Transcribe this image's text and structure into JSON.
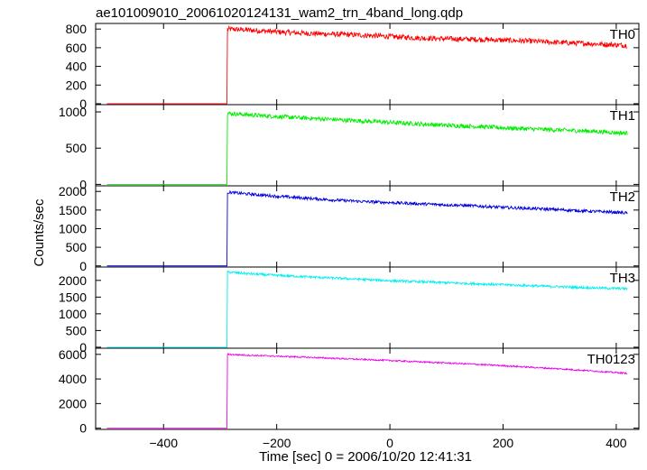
{
  "chart_data": {
    "type": "line",
    "title": "ae101009010_20061020124131_wam2_trn_4band_long.qdp",
    "xlabel": "Time [sec] 0 = 2006/10/20 12:41:31",
    "ylabel": "Counts/sec",
    "xlim": [
      -520,
      440
    ],
    "x_ticks": [
      -400,
      -200,
      0,
      200,
      400
    ],
    "x_tick_labels": [
      "−400",
      "−200",
      "0",
      "200",
      "400"
    ],
    "onset_x": -287,
    "data_x_range": [
      -500,
      420
    ],
    "grid": false,
    "panels": [
      {
        "name": "TH0",
        "color": "#ff0000",
        "ylim": [
          -10,
          860
        ],
        "y_ticks": [
          0,
          200,
          400,
          600,
          800
        ],
        "baseline": 0,
        "points_x": [
          -287,
          -250,
          -200,
          -150,
          -100,
          -50,
          0,
          50,
          100,
          150,
          200,
          250,
          300,
          350,
          400,
          420
        ],
        "points_y": [
          800,
          790,
          770,
          755,
          745,
          735,
          720,
          705,
          695,
          690,
          680,
          670,
          655,
          645,
          630,
          625
        ],
        "noise": 28
      },
      {
        "name": "TH1",
        "color": "#00ee00",
        "ylim": [
          -20,
          1100
        ],
        "y_ticks": [
          0,
          500,
          1000
        ],
        "baseline": 0,
        "points_x": [
          -287,
          -250,
          -200,
          -150,
          -100,
          -50,
          0,
          50,
          100,
          150,
          200,
          250,
          300,
          350,
          400,
          420
        ],
        "points_y": [
          980,
          960,
          935,
          915,
          895,
          875,
          855,
          835,
          815,
          800,
          780,
          765,
          750,
          735,
          715,
          705
        ],
        "noise": 30
      },
      {
        "name": "TH2",
        "color": "#0000dd",
        "ylim": [
          -30,
          2150
        ],
        "y_ticks": [
          0,
          500,
          1000,
          1500,
          2000
        ],
        "baseline": 0,
        "points_x": [
          -287,
          -250,
          -200,
          -150,
          -100,
          -50,
          0,
          50,
          100,
          150,
          200,
          250,
          300,
          350,
          400,
          420
        ],
        "points_y": [
          1980,
          1930,
          1870,
          1820,
          1770,
          1730,
          1700,
          1670,
          1640,
          1610,
          1570,
          1540,
          1510,
          1470,
          1440,
          1420
        ],
        "noise": 40
      },
      {
        "name": "TH3",
        "color": "#00eeee",
        "ylim": [
          -30,
          2400
        ],
        "y_ticks": [
          0,
          500,
          1000,
          1500,
          2000
        ],
        "baseline": 0,
        "points_x": [
          -287,
          -250,
          -200,
          -150,
          -100,
          -50,
          0,
          50,
          100,
          150,
          200,
          250,
          300,
          350,
          400,
          420
        ],
        "points_y": [
          2250,
          2200,
          2150,
          2110,
          2070,
          2030,
          1990,
          1960,
          1930,
          1900,
          1870,
          1840,
          1810,
          1780,
          1760,
          1750
        ],
        "noise": 35
      },
      {
        "name": "TH0123",
        "color": "#ee00ee",
        "ylim": [
          -100,
          6500
        ],
        "y_ticks": [
          0,
          2000,
          4000,
          6000
        ],
        "baseline": 0,
        "points_x": [
          -287,
          -250,
          -200,
          -150,
          -100,
          -50,
          0,
          50,
          100,
          150,
          200,
          250,
          300,
          350,
          400,
          420
        ],
        "points_y": [
          6000,
          5930,
          5850,
          5770,
          5680,
          5590,
          5500,
          5400,
          5300,
          5200,
          5080,
          4950,
          4820,
          4680,
          4520,
          4460
        ],
        "noise": 60
      }
    ]
  }
}
